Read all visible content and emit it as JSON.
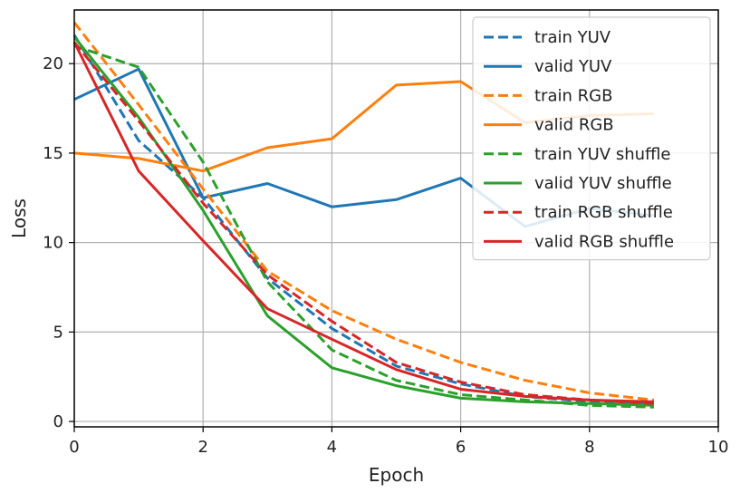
{
  "chart_data": {
    "type": "line",
    "title": "",
    "xlabel": "Epoch",
    "ylabel": "Loss",
    "xlim": [
      0,
      10
    ],
    "ylim": [
      -0.3,
      23
    ],
    "xticks": [
      0,
      2,
      4,
      6,
      8,
      10
    ],
    "yticks": [
      0,
      5,
      10,
      15,
      20
    ],
    "grid": true,
    "legend_position": "top-right",
    "colors": {
      "blue": "#1f77b4",
      "orange": "#ff7f0e",
      "green": "#2ca02c",
      "red": "#d62728"
    },
    "series": [
      {
        "name": "train YUV",
        "color": "#1f77b4",
        "style": "dashed",
        "x": [
          0,
          1,
          2,
          3,
          4,
          5,
          6,
          7,
          8,
          9
        ],
        "values": [
          21.6,
          15.7,
          12.5,
          8.0,
          5.2,
          3.1,
          2.1,
          1.4,
          1.1,
          1.0
        ]
      },
      {
        "name": "valid YUV",
        "color": "#1f77b4",
        "style": "solid",
        "x": [
          0,
          1,
          2,
          3,
          4,
          5,
          6,
          7,
          8,
          9
        ],
        "values": [
          18.0,
          19.7,
          12.5,
          13.3,
          12.0,
          12.4,
          13.6,
          10.9,
          11.9,
          11.5
        ]
      },
      {
        "name": "train RGB",
        "color": "#ff7f0e",
        "style": "dashed",
        "x": [
          0,
          1,
          2,
          3,
          4,
          5,
          6,
          7,
          8,
          9
        ],
        "values": [
          22.3,
          17.7,
          13.0,
          8.4,
          6.2,
          4.6,
          3.3,
          2.3,
          1.6,
          1.2
        ]
      },
      {
        "name": "valid RGB",
        "color": "#ff7f0e",
        "style": "solid",
        "x": [
          0,
          1,
          2,
          3,
          4,
          5,
          6,
          7,
          8,
          9
        ],
        "values": [
          15.0,
          14.7,
          14.0,
          15.3,
          15.8,
          18.8,
          19.0,
          16.7,
          17.1,
          17.2
        ]
      },
      {
        "name": "train YUV shuffle",
        "color": "#2ca02c",
        "style": "dashed",
        "x": [
          0,
          1,
          2,
          3,
          4,
          5,
          6,
          7,
          8,
          9
        ],
        "values": [
          21.0,
          19.8,
          14.5,
          7.8,
          4.0,
          2.3,
          1.5,
          1.2,
          0.9,
          0.8
        ]
      },
      {
        "name": "valid YUV shuffle",
        "color": "#2ca02c",
        "style": "solid",
        "x": [
          0,
          1,
          2,
          3,
          4,
          5,
          6,
          7,
          8,
          9
        ],
        "values": [
          21.5,
          17.0,
          11.8,
          5.9,
          3.0,
          2.0,
          1.3,
          1.1,
          1.0,
          0.9
        ]
      },
      {
        "name": "train RGB shuffle",
        "color": "#d62728",
        "style": "dashed",
        "x": [
          0,
          1,
          2,
          3,
          4,
          5,
          6,
          7,
          8,
          9
        ],
        "values": [
          21.2,
          16.8,
          12.2,
          8.2,
          5.6,
          3.3,
          2.2,
          1.5,
          1.2,
          1.0
        ]
      },
      {
        "name": "valid RGB shuffle",
        "color": "#d62728",
        "style": "solid",
        "x": [
          0,
          1,
          2,
          3,
          4,
          5,
          6,
          7,
          8,
          9
        ],
        "values": [
          21.2,
          14.0,
          10.1,
          6.3,
          4.6,
          2.9,
          1.8,
          1.4,
          1.2,
          1.1
        ]
      }
    ]
  }
}
